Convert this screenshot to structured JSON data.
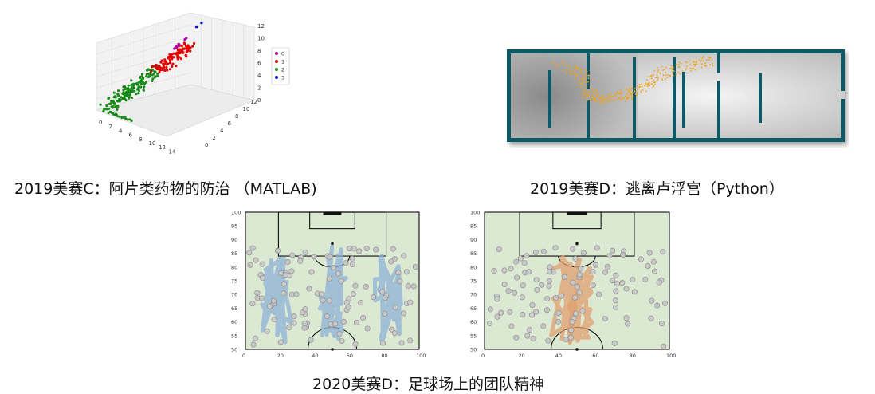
{
  "captions": {
    "matlab": "2019美赛C：阿片类药物的防治 （MATLAB)",
    "python": "2019美赛D：逃离卢浮宫（Python）",
    "soccer": "2020美赛D：足球场上的团队精神"
  },
  "scatter3d": {
    "legend": [
      "0",
      "1",
      "2",
      "3"
    ],
    "colors": {
      "0": "#b000b0",
      "1": "#e00000",
      "2": "#1a8a1a",
      "3": "#1010d0"
    },
    "x_ticks": [
      "0",
      "2",
      "4",
      "6",
      "8",
      "10",
      "12",
      "14"
    ],
    "y_ticks": [
      "0",
      "2",
      "4",
      "6",
      "8",
      "10",
      "12"
    ],
    "z_ticks": [
      "0",
      "2",
      "4",
      "6",
      "8",
      "10",
      "12"
    ]
  },
  "louvre": {
    "wall_color": "#0d5a66",
    "agent_color": "#f2a31a"
  },
  "pitch": {
    "x_ticks": [
      "0",
      "20",
      "40",
      "60",
      "80",
      "100"
    ],
    "y_ticks": [
      "50",
      "55",
      "60",
      "65",
      "70",
      "75",
      "80",
      "85",
      "90",
      "95",
      "100"
    ],
    "xlim": [
      0,
      100
    ],
    "ylim": [
      50,
      100
    ],
    "left_trail_color": "#8fb3d6",
    "right_trail_color": "#e0a070",
    "field_color": "#dbe8d2"
  }
}
